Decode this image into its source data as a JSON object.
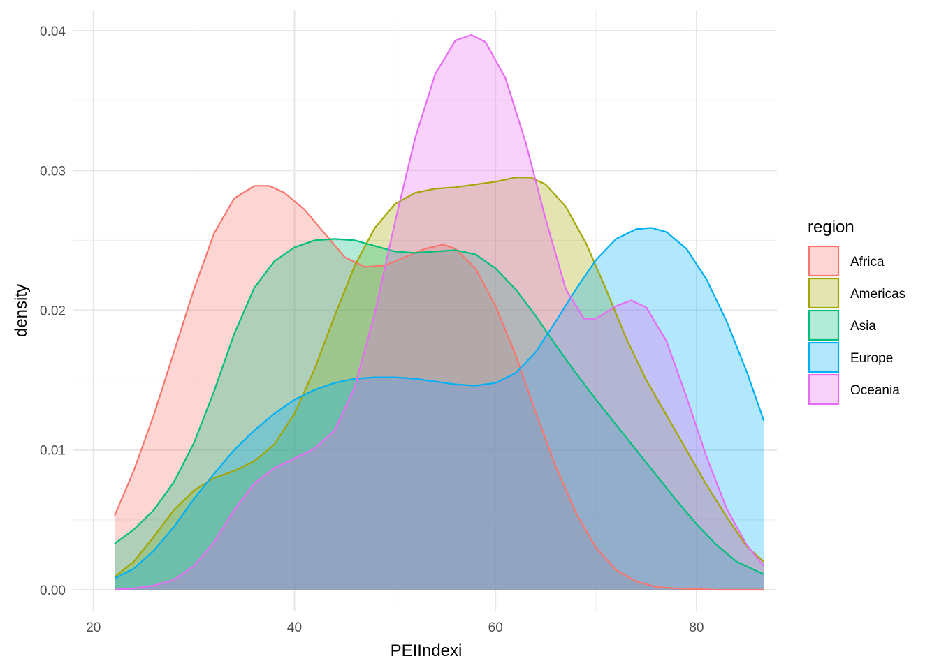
{
  "chart_data": {
    "type": "area",
    "subtype": "density",
    "title": "",
    "xlabel": "PEIIndexi",
    "ylabel": "density",
    "xlim": [
      18,
      88
    ],
    "ylim": [
      -0.0015,
      0.0415
    ],
    "x_ticks": [
      20,
      40,
      60,
      80
    ],
    "y_ticks": [
      0.0,
      0.01,
      0.02,
      0.03,
      0.04
    ],
    "x_tick_labels": [
      "20",
      "40",
      "60",
      "80"
    ],
    "y_tick_labels": [
      "0.00",
      "0.01",
      "0.02",
      "0.03",
      "0.04"
    ],
    "grid": true,
    "legend": {
      "title": "region",
      "position": "right"
    },
    "fill_opacity": 0.3,
    "series": [
      {
        "name": "Africa",
        "color": "#F8766D",
        "points": [
          [
            22.1,
            0.0053
          ],
          [
            24,
            0.0085
          ],
          [
            26,
            0.0125
          ],
          [
            28,
            0.017
          ],
          [
            30,
            0.0215
          ],
          [
            32,
            0.0255
          ],
          [
            34,
            0.028
          ],
          [
            36,
            0.0289
          ],
          [
            37.5,
            0.0289
          ],
          [
            39,
            0.0284
          ],
          [
            41,
            0.0272
          ],
          [
            43,
            0.0255
          ],
          [
            45,
            0.0238
          ],
          [
            47,
            0.0231
          ],
          [
            49,
            0.0232
          ],
          [
            51,
            0.0238
          ],
          [
            53,
            0.0244
          ],
          [
            54.8,
            0.0247
          ],
          [
            56,
            0.0244
          ],
          [
            58,
            0.023
          ],
          [
            60,
            0.0203
          ],
          [
            62,
            0.0168
          ],
          [
            64,
            0.0127
          ],
          [
            66,
            0.0088
          ],
          [
            68,
            0.0055
          ],
          [
            70,
            0.003
          ],
          [
            72,
            0.0014
          ],
          [
            74,
            0.0006
          ],
          [
            76,
            0.0002
          ],
          [
            78,
            0.0001
          ],
          [
            82,
            0.0
          ],
          [
            86.7,
            0.0
          ]
        ]
      },
      {
        "name": "Americas",
        "color": "#A3A500",
        "points": [
          [
            22.1,
            0.0009
          ],
          [
            24,
            0.002
          ],
          [
            26,
            0.0038
          ],
          [
            28,
            0.0057
          ],
          [
            30,
            0.0071
          ],
          [
            32,
            0.008
          ],
          [
            34,
            0.0085
          ],
          [
            36,
            0.0092
          ],
          [
            38,
            0.0104
          ],
          [
            40,
            0.0126
          ],
          [
            42,
            0.0158
          ],
          [
            44,
            0.0196
          ],
          [
            46,
            0.0232
          ],
          [
            48,
            0.0259
          ],
          [
            50,
            0.0276
          ],
          [
            52,
            0.0284
          ],
          [
            54,
            0.0287
          ],
          [
            56,
            0.0288
          ],
          [
            58,
            0.029
          ],
          [
            60,
            0.0292
          ],
          [
            62,
            0.0295
          ],
          [
            63.5,
            0.0295
          ],
          [
            65,
            0.029
          ],
          [
            67,
            0.0274
          ],
          [
            69,
            0.0248
          ],
          [
            71,
            0.0215
          ],
          [
            73,
            0.018
          ],
          [
            75,
            0.015
          ],
          [
            77,
            0.0125
          ],
          [
            79,
            0.01
          ],
          [
            81,
            0.0075
          ],
          [
            83,
            0.0052
          ],
          [
            85,
            0.0031
          ],
          [
            86.7,
            0.002
          ]
        ]
      },
      {
        "name": "Asia",
        "color": "#00BF7D",
        "points": [
          [
            22.1,
            0.0033
          ],
          [
            24,
            0.0043
          ],
          [
            26,
            0.0057
          ],
          [
            28,
            0.0077
          ],
          [
            30,
            0.0105
          ],
          [
            32,
            0.0142
          ],
          [
            34,
            0.0183
          ],
          [
            36,
            0.0216
          ],
          [
            38,
            0.0235
          ],
          [
            40,
            0.0245
          ],
          [
            42,
            0.025
          ],
          [
            44,
            0.0251
          ],
          [
            46,
            0.025
          ],
          [
            48,
            0.0246
          ],
          [
            50,
            0.0242
          ],
          [
            52,
            0.0241
          ],
          [
            54,
            0.0242
          ],
          [
            56,
            0.0243
          ],
          [
            58,
            0.024
          ],
          [
            60,
            0.023
          ],
          [
            62,
            0.0215
          ],
          [
            64,
            0.0196
          ],
          [
            66,
            0.0175
          ],
          [
            68,
            0.0155
          ],
          [
            70,
            0.0136
          ],
          [
            72,
            0.0118
          ],
          [
            74,
            0.01
          ],
          [
            76,
            0.0082
          ],
          [
            78,
            0.0064
          ],
          [
            80,
            0.0047
          ],
          [
            82,
            0.0032
          ],
          [
            84,
            0.002
          ],
          [
            86.7,
            0.0011
          ]
        ]
      },
      {
        "name": "Europe",
        "color": "#00B0F6",
        "points": [
          [
            22.1,
            0.0008
          ],
          [
            24,
            0.0015
          ],
          [
            26,
            0.0028
          ],
          [
            28,
            0.0045
          ],
          [
            30,
            0.0065
          ],
          [
            32,
            0.0083
          ],
          [
            34,
            0.01
          ],
          [
            36,
            0.0114
          ],
          [
            38,
            0.0126
          ],
          [
            40,
            0.0136
          ],
          [
            42,
            0.0143
          ],
          [
            44,
            0.0148
          ],
          [
            46,
            0.0151
          ],
          [
            48,
            0.0152
          ],
          [
            50,
            0.0152
          ],
          [
            52,
            0.0151
          ],
          [
            54,
            0.0149
          ],
          [
            56,
            0.0147
          ],
          [
            58,
            0.0146
          ],
          [
            60,
            0.0148
          ],
          [
            62,
            0.0155
          ],
          [
            64,
            0.017
          ],
          [
            66,
            0.0192
          ],
          [
            68,
            0.0215
          ],
          [
            70,
            0.0236
          ],
          [
            72,
            0.0251
          ],
          [
            74,
            0.0258
          ],
          [
            75.5,
            0.0259
          ],
          [
            77,
            0.0256
          ],
          [
            79,
            0.0244
          ],
          [
            81,
            0.0222
          ],
          [
            83,
            0.0192
          ],
          [
            85,
            0.0156
          ],
          [
            86.7,
            0.0121
          ]
        ]
      },
      {
        "name": "Oceania",
        "color": "#E76BF3",
        "points": [
          [
            22.1,
            0.0
          ],
          [
            24,
            0.0001
          ],
          [
            26,
            0.0003
          ],
          [
            28,
            0.0007
          ],
          [
            30,
            0.0017
          ],
          [
            32,
            0.0034
          ],
          [
            34,
            0.0057
          ],
          [
            36,
            0.0076
          ],
          [
            38,
            0.0087
          ],
          [
            40,
            0.0094
          ],
          [
            42,
            0.0101
          ],
          [
            44,
            0.0114
          ],
          [
            46,
            0.0145
          ],
          [
            48,
            0.0198
          ],
          [
            50,
            0.0263
          ],
          [
            52,
            0.0323
          ],
          [
            54,
            0.0369
          ],
          [
            56,
            0.0393
          ],
          [
            57.6,
            0.0397
          ],
          [
            59,
            0.0392
          ],
          [
            61,
            0.0366
          ],
          [
            63,
            0.032
          ],
          [
            65,
            0.0265
          ],
          [
            67,
            0.0215
          ],
          [
            68.8,
            0.0194
          ],
          [
            70,
            0.0194
          ],
          [
            72,
            0.0203
          ],
          [
            73.5,
            0.0207
          ],
          [
            75,
            0.0202
          ],
          [
            77,
            0.0178
          ],
          [
            79,
            0.0138
          ],
          [
            81,
            0.0095
          ],
          [
            83,
            0.0058
          ],
          [
            85,
            0.0032
          ],
          [
            86.7,
            0.0017
          ]
        ]
      }
    ]
  }
}
